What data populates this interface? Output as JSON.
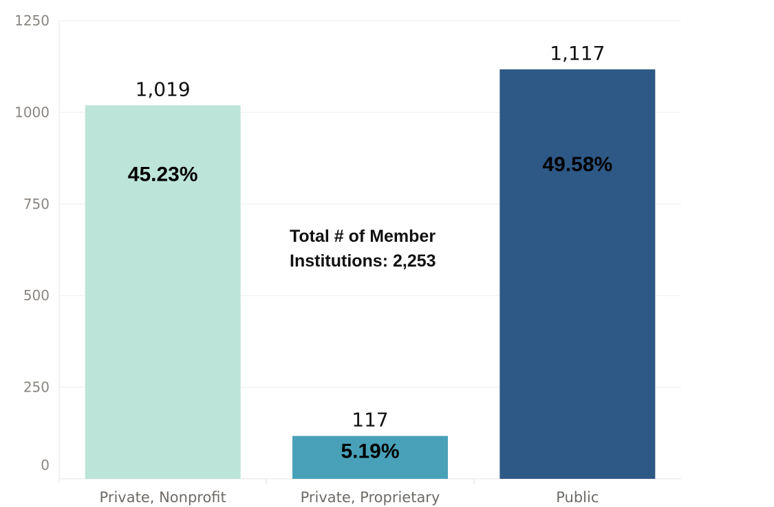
{
  "chart_data": {
    "type": "bar",
    "categories": [
      "Private, Nonprofit",
      "Private, Proprietary",
      "Public"
    ],
    "values": [
      1019,
      117,
      1117
    ],
    "value_labels": [
      "1,019",
      "117",
      "1,117"
    ],
    "percent_labels": [
      "45.23%",
      "5.19%",
      "49.58%"
    ],
    "colors": [
      "#bde4d8",
      "#48a1b8",
      "#2e5885"
    ],
    "ylim": [
      0,
      1250
    ],
    "yticks": [
      0,
      250,
      500,
      750,
      1000,
      1250
    ],
    "ytick_labels": [
      "0",
      "250",
      "500",
      "750",
      "1000",
      "1250"
    ],
    "grid": true,
    "annotation": [
      "Total # of Member",
      "Institutions: 2,253"
    ]
  }
}
